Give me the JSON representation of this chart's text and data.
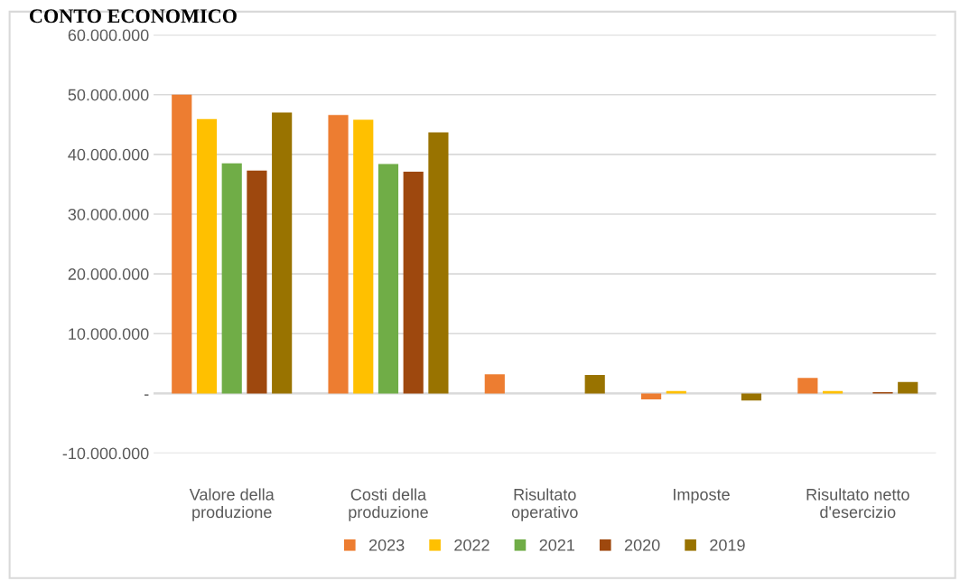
{
  "chart_data": {
    "type": "bar",
    "title": "CONTO ECONOMICO",
    "categories": [
      "Valore della\nproduzione",
      "Costi della\nproduzione",
      "Risultato\noperativo",
      "Imposte",
      "Risultato netto\nd'esercizio"
    ],
    "series": [
      {
        "name": "2023",
        "color": "#ed7d31",
        "values": [
          50000000,
          46600000,
          3200000,
          -1000000,
          2600000
        ]
      },
      {
        "name": "2022",
        "color": "#ffc000",
        "values": [
          45900000,
          45800000,
          0,
          400000,
          400000
        ]
      },
      {
        "name": "2021",
        "color": "#70ad47",
        "values": [
          38500000,
          38400000,
          0,
          0,
          0
        ]
      },
      {
        "name": "2020",
        "color": "#9e480e",
        "values": [
          37300000,
          37100000,
          0,
          0,
          200000
        ]
      },
      {
        "name": "2019",
        "color": "#997300",
        "values": [
          47000000,
          43700000,
          3100000,
          -1200000,
          1900000
        ]
      }
    ],
    "ylim": [
      -10000000,
      60000000
    ],
    "yticks": [
      {
        "value": -10000000,
        "label": "-10.000.000"
      },
      {
        "value": 0,
        "label": "-"
      },
      {
        "value": 10000000,
        "label": "10.000.000"
      },
      {
        "value": 20000000,
        "label": "20.000.000"
      },
      {
        "value": 30000000,
        "label": "30.000.000"
      },
      {
        "value": 40000000,
        "label": "40.000.000"
      },
      {
        "value": 50000000,
        "label": "50.000.000"
      },
      {
        "value": 60000000,
        "label": "60.000.000"
      }
    ],
    "grid": "y",
    "legend": "bottom"
  }
}
